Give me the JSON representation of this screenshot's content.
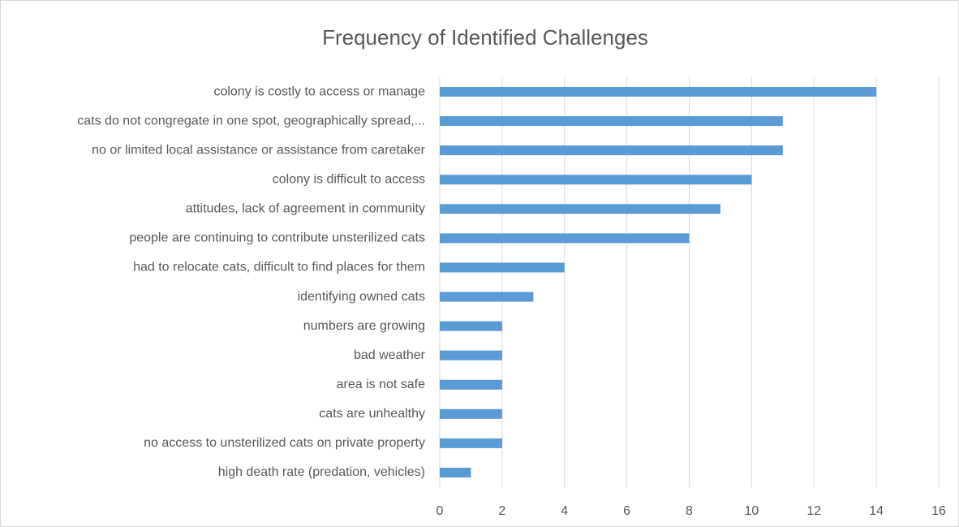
{
  "chart_data": {
    "type": "bar",
    "orientation": "horizontal",
    "title": "Frequency of Identified Challenges",
    "categories": [
      "colony is costly to access or manage",
      "cats do not congregate in one spot, geographically spread,...",
      "no or limited local assistance or assistance from caretaker",
      "colony is difficult to access",
      "attitudes, lack of agreement in community",
      "people are continuing to contribute unsterilized cats",
      "had to relocate cats, difficult to find places for them",
      "identifying owned cats",
      "numbers are growing",
      "bad weather",
      "area is not safe",
      "cats are unhealthy",
      "no access to unsterilized cats on private property",
      "high death rate (predation, vehicles)"
    ],
    "values": [
      14,
      11,
      11,
      10,
      9,
      8,
      4,
      3,
      2,
      2,
      2,
      2,
      2,
      1
    ],
    "color": "#5b9bd5",
    "xlim": [
      0,
      16
    ],
    "xticks": [
      0,
      2,
      4,
      6,
      8,
      10,
      12,
      14,
      16
    ],
    "grid": true
  }
}
